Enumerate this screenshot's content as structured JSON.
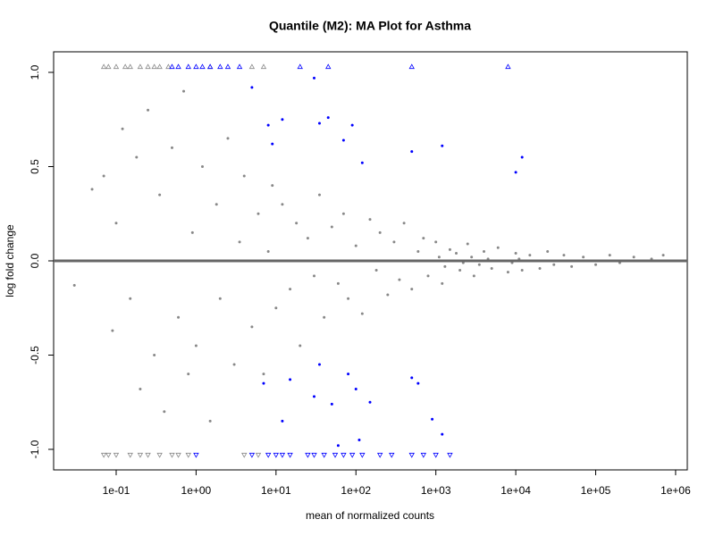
{
  "chart_data": {
    "type": "scatter",
    "title": "Quantile (M2): MA Plot for Asthma",
    "x_label": "mean of normalized counts",
    "y_label": "log fold change",
    "x_scale": "log",
    "xlim": [
      0.0165,
      1400000
    ],
    "ylim": [
      -1.109,
      1.109
    ],
    "xticks": [
      {
        "value": 0.1,
        "label": "1e-01"
      },
      {
        "value": 1,
        "label": "1e+00"
      },
      {
        "value": 10,
        "label": "1e+01"
      },
      {
        "value": 100,
        "label": "1e+02"
      },
      {
        "value": 1000,
        "label": "1e+03"
      },
      {
        "value": 10000,
        "label": "1e+04"
      },
      {
        "value": 100000,
        "label": "1e+05"
      },
      {
        "value": 1000000,
        "label": "1e+06"
      }
    ],
    "yticks": [
      {
        "value": -1,
        "label": "-1.0"
      },
      -0.5,
      {
        "value": 0,
        "label": "0.0"
      },
      0.5,
      {
        "value": 1,
        "label": "1.0"
      }
    ],
    "hline": {
      "value": 0,
      "color": "#666666"
    },
    "series": [
      {
        "color": "#888888",
        "marker": "circle",
        "x": [
          0.03,
          0.05,
          0.07,
          0.09,
          0.1,
          0.12,
          0.15,
          0.18,
          0.2,
          0.25,
          0.3,
          0.35,
          0.4,
          0.5,
          0.6,
          0.7,
          0.8,
          0.9,
          1,
          1.2,
          1.5,
          1.8,
          2,
          2.5,
          3,
          3.5,
          4,
          5,
          6,
          7,
          8,
          9,
          10,
          12,
          15,
          18,
          20,
          25,
          30,
          35,
          40,
          50,
          60,
          70,
          80,
          100,
          120,
          150,
          180,
          200,
          250,
          300,
          350,
          400,
          500,
          600,
          700,
          800,
          1000,
          1200,
          1500,
          2000,
          2500,
          3000,
          4000,
          5000,
          6000,
          8000,
          10000,
          12000,
          15000,
          20000,
          25000,
          30000,
          40000,
          50000,
          70000,
          100000,
          150000,
          200000,
          300000,
          500000,
          700000,
          1100,
          1300,
          1800,
          2200,
          2800,
          3500,
          4500,
          7000,
          9000,
          11000
        ],
        "values": [
          -0.13,
          0.38,
          0.45,
          -0.37,
          0.2,
          0.7,
          -0.2,
          0.55,
          -0.68,
          0.8,
          -0.5,
          0.35,
          -0.8,
          0.6,
          -0.3,
          0.9,
          -0.6,
          0.15,
          -0.45,
          0.5,
          -0.85,
          0.3,
          -0.2,
          0.65,
          -0.55,
          0.1,
          0.45,
          -0.35,
          0.25,
          -0.6,
          0.05,
          0.4,
          -0.25,
          0.3,
          -0.15,
          0.2,
          -0.45,
          0.12,
          -0.08,
          0.35,
          -0.3,
          0.18,
          -0.12,
          0.25,
          -0.2,
          0.08,
          -0.28,
          0.22,
          -0.05,
          0.15,
          -0.18,
          0.1,
          -0.1,
          0.2,
          -0.15,
          0.05,
          0.12,
          -0.08,
          0.1,
          -0.12,
          0.06,
          -0.05,
          0.09,
          -0.08,
          0.05,
          -0.04,
          0.07,
          -0.06,
          0.04,
          -0.05,
          0.03,
          -0.04,
          0.05,
          -0.02,
          0.03,
          -0.03,
          0.02,
          -0.02,
          0.03,
          -0.01,
          0.02,
          0.01,
          0.03,
          0.02,
          -0.03,
          0.04,
          -0.01,
          0.02,
          -0.02,
          0.01,
          0.0,
          -0.01,
          0.01
        ]
      },
      {
        "color": "#0000ff",
        "marker": "circle",
        "x": [
          5,
          8,
          9,
          12,
          30,
          35,
          45,
          70,
          90,
          120,
          500,
          1200,
          10000,
          12000,
          7,
          12,
          15,
          30,
          35,
          50,
          80,
          100,
          150,
          500,
          600,
          900,
          1200,
          60,
          110
        ],
        "values": [
          0.92,
          0.72,
          0.62,
          0.75,
          0.97,
          0.73,
          0.76,
          0.64,
          0.72,
          0.52,
          0.58,
          0.61,
          0.47,
          0.55,
          -0.65,
          -0.85,
          -0.63,
          -0.72,
          -0.55,
          -0.76,
          -0.6,
          -0.68,
          -0.75,
          -0.62,
          -0.65,
          -0.84,
          -0.92,
          -0.98,
          -0.95
        ]
      },
      {
        "color": "#888888",
        "marker": "triangle-up",
        "x": [
          0.07,
          0.08,
          0.1,
          0.13,
          0.15,
          0.2,
          0.25,
          0.3,
          0.35,
          0.45,
          1.5,
          5,
          7
        ],
        "values": [
          1.03,
          1.03,
          1.03,
          1.03,
          1.03,
          1.03,
          1.03,
          1.03,
          1.03,
          1.03,
          1.03,
          1.03,
          1.03
        ]
      },
      {
        "color": "#0000ff",
        "marker": "triangle-up",
        "x": [
          0.5,
          0.6,
          0.8,
          1,
          1.2,
          1.5,
          2,
          2.5,
          3.5,
          20,
          45,
          500,
          8000
        ],
        "values": [
          1.03,
          1.03,
          1.03,
          1.03,
          1.03,
          1.03,
          1.03,
          1.03,
          1.03,
          1.03,
          1.03,
          1.03,
          1.03
        ]
      },
      {
        "color": "#888888",
        "marker": "triangle-down",
        "x": [
          0.07,
          0.08,
          0.1,
          0.15,
          0.2,
          0.25,
          0.35,
          0.5,
          0.6,
          0.8,
          4,
          6
        ],
        "values": [
          -1.03,
          -1.03,
          -1.03,
          -1.03,
          -1.03,
          -1.03,
          -1.03,
          -1.03,
          -1.03,
          -1.03,
          -1.03,
          -1.03
        ]
      },
      {
        "color": "#0000ff",
        "marker": "triangle-down",
        "x": [
          1,
          5,
          8,
          10,
          12,
          15,
          25,
          30,
          40,
          55,
          70,
          90,
          120,
          200,
          280,
          500,
          700,
          1000,
          1500
        ],
        "values": [
          -1.03,
          -1.03,
          -1.03,
          -1.03,
          -1.03,
          -1.03,
          -1.03,
          -1.03,
          -1.03,
          -1.03,
          -1.03,
          -1.03,
          -1.03,
          -1.03,
          -1.03,
          -1.03,
          -1.03,
          -1.03,
          -1.03
        ]
      }
    ]
  }
}
